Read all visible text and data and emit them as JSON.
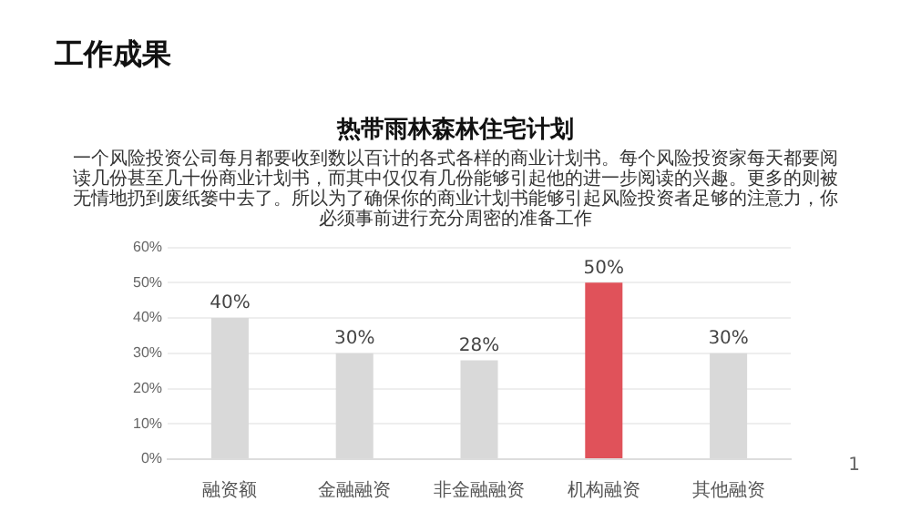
{
  "chart_data": {
    "type": "bar",
    "title": "工作成果",
    "subtitle": "热带雨林森林住宅计划",
    "annotations": [
      "一个风险投资公司每月都要收到数以百计的各式各样的商业计划书。每个风险投资家每天都要阅读几份甚至几十份商业计划书，而其中仅仅有几份能够引起他的进一步阅读的兴趣。更多的则被无情地扔到废纸篓中去了。所以为了确保你的商业计划书能够引起风险投资者足够的注意力，你必须事前进行充分周密的准备工作",
      "1"
    ],
    "categories": [
      "融资额",
      "金融融资",
      "非金融融资",
      "机构融资",
      "其他融资"
    ],
    "values": [
      40,
      30,
      28,
      50,
      30
    ],
    "colors": [
      "#d9d9d9",
      "#d9d9d9",
      "#d9d9d9",
      "#e0525a",
      "#d9d9d9"
    ],
    "value_labels": [
      "40%",
      "30%",
      "28%",
      "50%",
      "30%"
    ],
    "ylim": [
      0,
      60
    ],
    "yticks": [
      {
        "value": 0,
        "label": "0%"
      },
      {
        "value": 10,
        "label": "10%"
      },
      {
        "value": 20,
        "label": "20%"
      },
      {
        "value": 30,
        "label": "30%"
      },
      {
        "value": 40,
        "label": "40%"
      },
      {
        "value": 50,
        "label": "50%"
      },
      {
        "value": 60,
        "label": "60%"
      }
    ],
    "grid": "y",
    "legend": false
  }
}
